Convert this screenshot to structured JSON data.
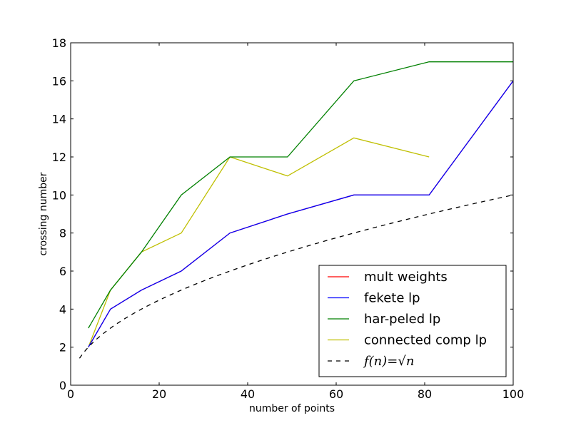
{
  "chart_data": {
    "type": "line",
    "xlabel": "number of points",
    "ylabel": "crossing number",
    "xlim": [
      0,
      100
    ],
    "ylim": [
      0,
      18
    ],
    "xticks": [
      "0",
      "20",
      "40",
      "60",
      "80",
      "100"
    ],
    "yticks": [
      "0",
      "2",
      "4",
      "6",
      "8",
      "10",
      "12",
      "14",
      "16",
      "18"
    ],
    "grid": false,
    "legend_position": "lower-right",
    "series": [
      {
        "name": "mult weights",
        "color": "#ff0000",
        "dash": "solid",
        "x": [
          4,
          9,
          16,
          25,
          36,
          49,
          64,
          81,
          100
        ],
        "y": [
          2,
          4,
          5,
          6,
          8,
          9,
          10,
          10,
          16
        ]
      },
      {
        "name": "fekete lp",
        "color": "#0000ff",
        "dash": "solid",
        "x": [
          4,
          9,
          16,
          25,
          36,
          49,
          64,
          81,
          100
        ],
        "y": [
          2,
          4,
          5,
          6,
          8,
          9,
          10,
          10,
          16
        ]
      },
      {
        "name": "har-peled lp",
        "color": "#008000",
        "dash": "solid",
        "x": [
          4,
          9,
          16,
          25,
          36,
          49,
          64,
          81,
          100
        ],
        "y": [
          3,
          5,
          7,
          10,
          12,
          12,
          16,
          17,
          17
        ]
      },
      {
        "name": "connected comp lp",
        "color": "#bfbf00",
        "dash": "solid",
        "x": [
          4,
          9,
          16,
          25,
          36,
          49,
          64,
          81
        ],
        "y": [
          2,
          5,
          7,
          8,
          12,
          11,
          13,
          12
        ]
      },
      {
        "name": "f(n)=√n",
        "color": "#000000",
        "dash": "dashed",
        "function": "sqrt",
        "x_range": [
          2,
          100
        ]
      }
    ]
  }
}
